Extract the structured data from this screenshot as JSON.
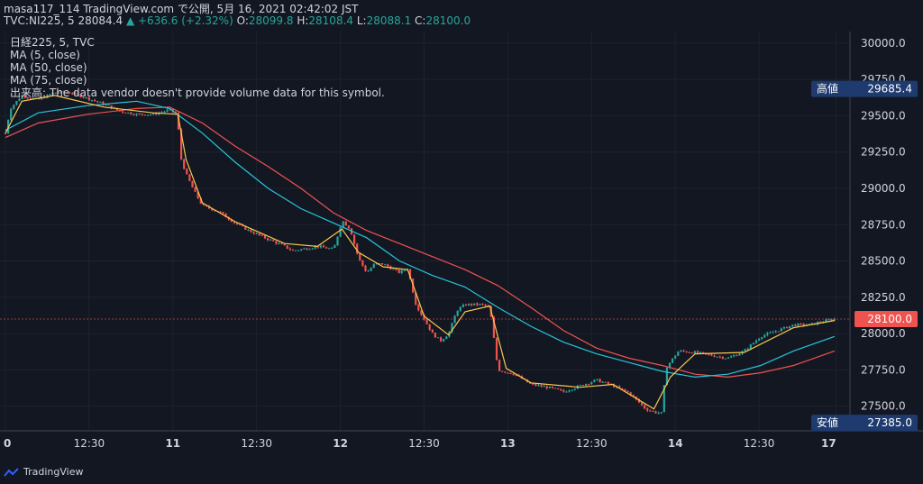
{
  "header": {
    "line1": "masa117_114 TradingView.com で公開, 5月 16, 2021 02:42:02 JST",
    "symbol": "TVC:NI225, 5",
    "last": "28084.4",
    "arrow": "▲",
    "change": "+636.6 (+2.32%)",
    "o_label": "O:",
    "o": "28099.8",
    "h_label": "H:",
    "h": "28108.4",
    "l_label": "L:",
    "l": "28088.1",
    "c_label": "C:",
    "c": "28100.0"
  },
  "legend": {
    "title": "日経225, 5, TVC",
    "ma5": "MA (5, close)",
    "ma50": "MA (50, close)",
    "ma75": "MA (75, close)",
    "volume": "出来高: The data vendor doesn't provide volume data for this symbol."
  },
  "footer": {
    "brand": "TradingView"
  },
  "colors": {
    "bg": "#131722",
    "up": "#26a69a",
    "down": "#ef5350",
    "ma5": "#f9c74f",
    "ma50": "#26c6da",
    "ma75": "#ef5350",
    "high_box": "#1e3a6e",
    "last_box": "#ef5350"
  },
  "chart_data": {
    "type": "candlestick",
    "x_ticks": [
      "0",
      "12:30",
      "11",
      "12:30",
      "12",
      "12:30",
      "13",
      "12:30",
      "14",
      "12:30",
      "17"
    ],
    "y_ticks": [
      "30000.0",
      "29750.0",
      "29500.0",
      "29250.0",
      "29000.0",
      "28750.0",
      "28500.0",
      "28250.0",
      "28000.0",
      "27750.0",
      "27500.0"
    ],
    "ylim": [
      27330,
      30080
    ],
    "high_label": "高値",
    "high_value": "29685.4",
    "low_label": "安値",
    "low_value": "27385.0",
    "last_value": "28100.0",
    "price_path": [
      [
        0,
        29380
      ],
      [
        0.3,
        29550
      ],
      [
        1,
        29640
      ],
      [
        2,
        29610
      ],
      [
        3,
        29660
      ],
      [
        4,
        29660
      ],
      [
        5,
        29620
      ],
      [
        6,
        29580
      ],
      [
        7,
        29530
      ],
      [
        8,
        29510
      ],
      [
        9,
        29510
      ],
      [
        10,
        29540
      ],
      [
        10.5,
        29510
      ],
      [
        10.6,
        29240
      ],
      [
        11,
        29100
      ],
      [
        11.5,
        28980
      ],
      [
        12,
        28880
      ],
      [
        13,
        28840
      ],
      [
        14,
        28760
      ],
      [
        15,
        28700
      ],
      [
        16,
        28650
      ],
      [
        17,
        28600
      ],
      [
        17.5,
        28570
      ],
      [
        18,
        28580
      ],
      [
        19,
        28600
      ],
      [
        20,
        28580
      ],
      [
        20.5,
        28780
      ],
      [
        21,
        28720
      ],
      [
        21.5,
        28520
      ],
      [
        22,
        28420
      ],
      [
        22.5,
        28480
      ],
      [
        23,
        28480
      ],
      [
        24,
        28420
      ],
      [
        24.5,
        28450
      ],
      [
        25,
        28200
      ],
      [
        26,
        28000
      ],
      [
        26.5,
        27950
      ],
      [
        27,
        28000
      ],
      [
        27.5,
        28160
      ],
      [
        28,
        28200
      ],
      [
        29,
        28200
      ],
      [
        29.5,
        28180
      ],
      [
        30,
        27750
      ],
      [
        31,
        27720
      ],
      [
        32,
        27650
      ],
      [
        33,
        27630
      ],
      [
        34,
        27600
      ],
      [
        35,
        27640
      ],
      [
        36,
        27680
      ],
      [
        37,
        27640
      ],
      [
        38,
        27590
      ],
      [
        39,
        27480
      ],
      [
        39.5,
        27460
      ],
      [
        40,
        27450
      ],
      [
        40.2,
        27760
      ],
      [
        41,
        27880
      ],
      [
        42,
        27870
      ],
      [
        43,
        27850
      ],
      [
        44,
        27830
      ],
      [
        45,
        27880
      ],
      [
        46,
        27980
      ],
      [
        47,
        28020
      ],
      [
        48,
        28060
      ],
      [
        49,
        28060
      ],
      [
        50,
        28090
      ],
      [
        50.5,
        28100
      ]
    ],
    "ma5": [
      [
        0,
        29380
      ],
      [
        1,
        29600
      ],
      [
        3,
        29640
      ],
      [
        6,
        29560
      ],
      [
        9,
        29520
      ],
      [
        10.5,
        29510
      ],
      [
        11,
        29200
      ],
      [
        12,
        28900
      ],
      [
        14,
        28770
      ],
      [
        17,
        28620
      ],
      [
        19,
        28600
      ],
      [
        20.5,
        28720
      ],
      [
        21.5,
        28560
      ],
      [
        23,
        28460
      ],
      [
        24.5,
        28440
      ],
      [
        25.5,
        28120
      ],
      [
        27,
        27990
      ],
      [
        28,
        28150
      ],
      [
        29.5,
        28190
      ],
      [
        30.5,
        27760
      ],
      [
        32,
        27660
      ],
      [
        35,
        27630
      ],
      [
        37,
        27650
      ],
      [
        39.5,
        27480
      ],
      [
        40.5,
        27700
      ],
      [
        42,
        27860
      ],
      [
        45,
        27870
      ],
      [
        48,
        28040
      ],
      [
        50.5,
        28090
      ]
    ],
    "ma50": [
      [
        0,
        29400
      ],
      [
        2,
        29520
      ],
      [
        5,
        29570
      ],
      [
        8,
        29600
      ],
      [
        10,
        29550
      ],
      [
        12,
        29380
      ],
      [
        14,
        29180
      ],
      [
        16,
        29000
      ],
      [
        18,
        28860
      ],
      [
        20,
        28760
      ],
      [
        22,
        28660
      ],
      [
        24,
        28500
      ],
      [
        26,
        28400
      ],
      [
        28,
        28320
      ],
      [
        30,
        28180
      ],
      [
        32,
        28050
      ],
      [
        34,
        27940
      ],
      [
        36,
        27860
      ],
      [
        38,
        27800
      ],
      [
        40,
        27740
      ],
      [
        42,
        27700
      ],
      [
        44,
        27720
      ],
      [
        46,
        27780
      ],
      [
        48,
        27880
      ],
      [
        50.5,
        27980
      ]
    ],
    "ma75": [
      [
        0,
        29350
      ],
      [
        2,
        29450
      ],
      [
        5,
        29510
      ],
      [
        8,
        29550
      ],
      [
        10,
        29560
      ],
      [
        12,
        29450
      ],
      [
        14,
        29290
      ],
      [
        16,
        29150
      ],
      [
        18,
        29000
      ],
      [
        20,
        28830
      ],
      [
        22,
        28710
      ],
      [
        24,
        28620
      ],
      [
        26,
        28530
      ],
      [
        28,
        28440
      ],
      [
        30,
        28330
      ],
      [
        32,
        28180
      ],
      [
        34,
        28020
      ],
      [
        36,
        27900
      ],
      [
        38,
        27830
      ],
      [
        40,
        27780
      ],
      [
        42,
        27720
      ],
      [
        44,
        27700
      ],
      [
        46,
        27730
      ],
      [
        48,
        27780
      ],
      [
        50.5,
        27880
      ]
    ]
  }
}
